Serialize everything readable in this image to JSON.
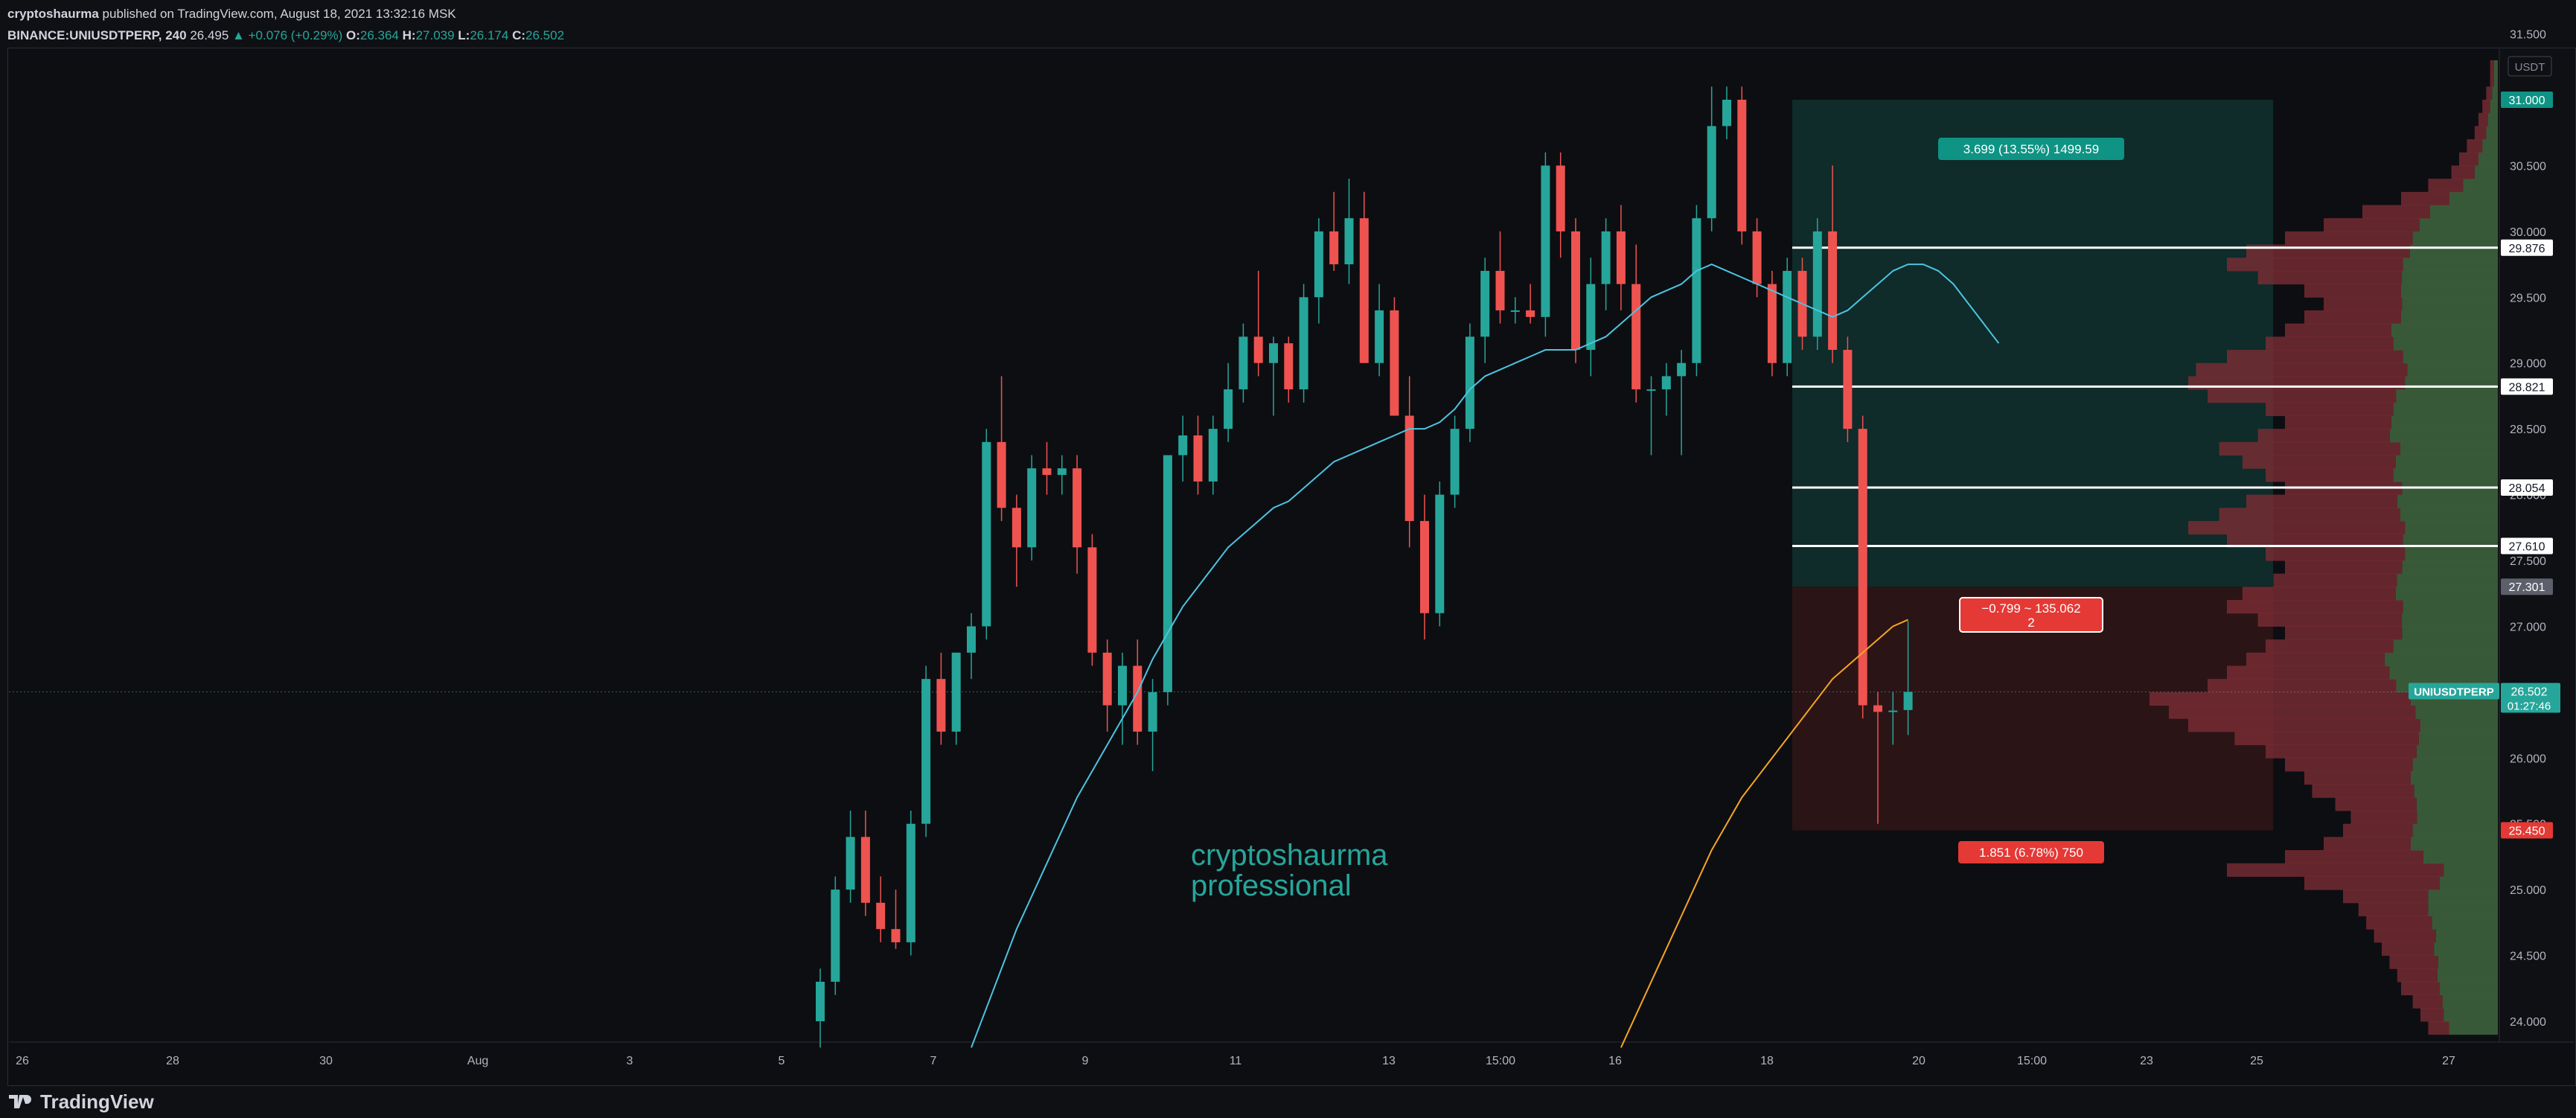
{
  "header": {
    "author": "cryptoshaurma",
    "published": " published on TradingView.com, August 18, 2021 13:32:16 MSK",
    "symbol_line": "BINANCE:UNIUSDTPERP, 240",
    "last": "26.495",
    "change": "▲ +0.076 (+0.29%)",
    "o_label": "O:",
    "o": "26.364",
    "h_label": "H:",
    "h": "27.039",
    "l_label": "L:",
    "l": "26.174",
    "c_label": "C:",
    "c": "26.502"
  },
  "footer": {
    "brand": "TradingView",
    "logo_icon": "tradingview-logo-icon"
  },
  "colors": {
    "up": "#26a69a",
    "down": "#ef5350",
    "ma_fast": "#4dc4e0",
    "ma_slow": "#f5a623",
    "profit_zone": "#0f2f2e",
    "loss_zone": "#2f1517",
    "vp_up": "#3b5e3a",
    "vp_down": "#7a2d35"
  },
  "chart_data": {
    "type": "candlestick",
    "symbol": "UNIUSDTPERP",
    "timeframe": "240",
    "price_unit": "USDT",
    "x_tick_labels": [
      "26",
      "28",
      "30",
      "Aug",
      "3",
      "5",
      "7",
      "9",
      "11",
      "13",
      "15:00",
      "16",
      "18",
      "20",
      "15:00",
      "23",
      "25",
      "27"
    ],
    "y_ticks": [
      "31.500",
      "31.000",
      "30.500",
      "30.000",
      "29.500",
      "29.000",
      "28.500",
      "28.000",
      "27.500",
      "27.000",
      "26.500",
      "26.000",
      "25.500",
      "25.000",
      "24.500",
      "24.000"
    ],
    "y_range": [
      23.8,
      31.8
    ],
    "candles": [
      {
        "o": 24.0,
        "h": 24.4,
        "l": 23.8,
        "c": 24.3
      },
      {
        "o": 24.3,
        "h": 25.1,
        "l": 24.2,
        "c": 25.0
      },
      {
        "o": 25.0,
        "h": 25.6,
        "l": 24.9,
        "c": 25.4
      },
      {
        "o": 25.4,
        "h": 25.6,
        "l": 24.8,
        "c": 24.9
      },
      {
        "o": 24.9,
        "h": 25.1,
        "l": 24.6,
        "c": 24.7
      },
      {
        "o": 24.7,
        "h": 25.0,
        "l": 24.55,
        "c": 24.6
      },
      {
        "o": 24.6,
        "h": 25.6,
        "l": 24.5,
        "c": 25.5
      },
      {
        "o": 25.5,
        "h": 26.7,
        "l": 25.4,
        "c": 26.6
      },
      {
        "o": 26.6,
        "h": 26.8,
        "l": 26.1,
        "c": 26.2
      },
      {
        "o": 26.2,
        "h": 26.8,
        "l": 26.1,
        "c": 26.8
      },
      {
        "o": 26.8,
        "h": 27.1,
        "l": 26.6,
        "c": 27.0
      },
      {
        "o": 27.0,
        "h": 28.5,
        "l": 26.9,
        "c": 28.4
      },
      {
        "o": 28.4,
        "h": 28.9,
        "l": 27.8,
        "c": 27.9
      },
      {
        "o": 27.9,
        "h": 28.0,
        "l": 27.3,
        "c": 27.6
      },
      {
        "o": 27.6,
        "h": 28.3,
        "l": 27.5,
        "c": 28.2
      },
      {
        "o": 28.2,
        "h": 28.4,
        "l": 28.0,
        "c": 28.15
      },
      {
        "o": 28.15,
        "h": 28.3,
        "l": 28.0,
        "c": 28.2
      },
      {
        "o": 28.2,
        "h": 28.3,
        "l": 27.4,
        "c": 27.6
      },
      {
        "o": 27.6,
        "h": 27.7,
        "l": 26.7,
        "c": 26.8
      },
      {
        "o": 26.8,
        "h": 26.9,
        "l": 26.2,
        "c": 26.4
      },
      {
        "o": 26.4,
        "h": 26.8,
        "l": 26.1,
        "c": 26.7
      },
      {
        "o": 26.7,
        "h": 26.9,
        "l": 26.1,
        "c": 26.2
      },
      {
        "o": 26.2,
        "h": 26.6,
        "l": 25.9,
        "c": 26.5
      },
      {
        "o": 26.5,
        "h": 28.3,
        "l": 26.4,
        "c": 28.3
      },
      {
        "o": 28.3,
        "h": 28.6,
        "l": 28.1,
        "c": 28.45
      },
      {
        "o": 28.45,
        "h": 28.6,
        "l": 28.0,
        "c": 28.1
      },
      {
        "o": 28.1,
        "h": 28.6,
        "l": 28.0,
        "c": 28.5
      },
      {
        "o": 28.5,
        "h": 29.0,
        "l": 28.4,
        "c": 28.8
      },
      {
        "o": 28.8,
        "h": 29.3,
        "l": 28.7,
        "c": 29.2
      },
      {
        "o": 29.2,
        "h": 29.7,
        "l": 28.9,
        "c": 29.0
      },
      {
        "o": 29.0,
        "h": 29.2,
        "l": 28.6,
        "c": 29.15
      },
      {
        "o": 29.15,
        "h": 29.2,
        "l": 28.7,
        "c": 28.8
      },
      {
        "o": 28.8,
        "h": 29.6,
        "l": 28.7,
        "c": 29.5
      },
      {
        "o": 29.5,
        "h": 30.1,
        "l": 29.3,
        "c": 30.0
      },
      {
        "o": 30.0,
        "h": 30.3,
        "l": 29.7,
        "c": 29.75
      },
      {
        "o": 29.75,
        "h": 30.4,
        "l": 29.6,
        "c": 30.1
      },
      {
        "o": 30.1,
        "h": 30.3,
        "l": 29.0,
        "c": 29.0
      },
      {
        "o": 29.0,
        "h": 29.6,
        "l": 28.9,
        "c": 29.4
      },
      {
        "o": 29.4,
        "h": 29.5,
        "l": 28.6,
        "c": 28.6
      },
      {
        "o": 28.6,
        "h": 28.9,
        "l": 27.6,
        "c": 27.8
      },
      {
        "o": 27.8,
        "h": 28.0,
        "l": 26.9,
        "c": 27.1
      },
      {
        "o": 27.1,
        "h": 28.1,
        "l": 27.0,
        "c": 28.0
      },
      {
        "o": 28.0,
        "h": 28.6,
        "l": 27.9,
        "c": 28.5
      },
      {
        "o": 28.5,
        "h": 29.3,
        "l": 28.4,
        "c": 29.2
      },
      {
        "o": 29.2,
        "h": 29.8,
        "l": 29.0,
        "c": 29.7
      },
      {
        "o": 29.7,
        "h": 30.0,
        "l": 29.3,
        "c": 29.4
      },
      {
        "o": 29.4,
        "h": 29.5,
        "l": 29.3,
        "c": 29.4
      },
      {
        "o": 29.4,
        "h": 29.6,
        "l": 29.3,
        "c": 29.35
      },
      {
        "o": 29.35,
        "h": 30.6,
        "l": 29.2,
        "c": 30.5
      },
      {
        "o": 30.5,
        "h": 30.6,
        "l": 29.8,
        "c": 30.0
      },
      {
        "o": 30.0,
        "h": 30.1,
        "l": 29.0,
        "c": 29.1
      },
      {
        "o": 29.1,
        "h": 29.8,
        "l": 28.9,
        "c": 29.6
      },
      {
        "o": 29.6,
        "h": 30.1,
        "l": 29.4,
        "c": 30.0
      },
      {
        "o": 30.0,
        "h": 30.2,
        "l": 29.4,
        "c": 29.6
      },
      {
        "o": 29.6,
        "h": 29.9,
        "l": 28.7,
        "c": 28.8
      },
      {
        "o": 28.8,
        "h": 28.9,
        "l": 28.3,
        "c": 28.8
      },
      {
        "o": 28.8,
        "h": 29.0,
        "l": 28.6,
        "c": 28.9
      },
      {
        "o": 28.9,
        "h": 29.1,
        "l": 28.3,
        "c": 29.0
      },
      {
        "o": 29.0,
        "h": 30.2,
        "l": 28.9,
        "c": 30.1
      },
      {
        "o": 30.1,
        "h": 31.1,
        "l": 30.0,
        "c": 30.8
      },
      {
        "o": 30.8,
        "h": 31.1,
        "l": 30.7,
        "c": 31.0
      },
      {
        "o": 31.0,
        "h": 31.1,
        "l": 29.9,
        "c": 30.0
      },
      {
        "o": 30.0,
        "h": 30.1,
        "l": 29.5,
        "c": 29.6
      },
      {
        "o": 29.6,
        "h": 29.7,
        "l": 28.9,
        "c": 29.0
      },
      {
        "o": 29.0,
        "h": 29.8,
        "l": 28.9,
        "c": 29.7
      },
      {
        "o": 29.7,
        "h": 29.8,
        "l": 29.1,
        "c": 29.2
      },
      {
        "o": 29.2,
        "h": 30.1,
        "l": 29.1,
        "c": 30.0
      },
      {
        "o": 30.0,
        "h": 30.5,
        "l": 29.0,
        "c": 29.1
      },
      {
        "o": 29.1,
        "h": 29.2,
        "l": 28.4,
        "c": 28.5
      },
      {
        "o": 28.5,
        "h": 28.6,
        "l": 26.3,
        "c": 26.4
      },
      {
        "o": 26.4,
        "h": 26.5,
        "l": 25.5,
        "c": 26.35
      },
      {
        "o": 26.35,
        "h": 26.5,
        "l": 26.1,
        "c": 26.36
      },
      {
        "o": 26.364,
        "h": 27.039,
        "l": 26.174,
        "c": 26.502
      }
    ],
    "ma_fast": [
      23.8,
      24.1,
      24.4,
      24.7,
      24.95,
      25.2,
      25.45,
      25.7,
      25.9,
      26.1,
      26.3,
      26.5,
      26.75,
      26.95,
      27.15,
      27.3,
      27.45,
      27.6,
      27.7,
      27.8,
      27.9,
      27.95,
      28.05,
      28.15,
      28.25,
      28.3,
      28.35,
      28.4,
      28.45,
      28.5,
      28.5,
      28.55,
      28.65,
      28.8,
      28.9,
      28.95,
      29.0,
      29.05,
      29.1,
      29.1,
      29.1,
      29.15,
      29.2,
      29.3,
      29.4,
      29.5,
      29.55,
      29.6,
      29.7,
      29.75,
      29.7,
      29.65,
      29.6,
      29.55,
      29.5,
      29.45,
      29.4,
      29.35,
      29.4,
      29.5,
      29.6,
      29.7,
      29.75,
      29.75,
      29.7,
      29.6,
      29.45,
      29.3,
      29.15
    ],
    "ma_fast_start_index": 10,
    "ma_slow": [
      23.8,
      24.05,
      24.3,
      24.55,
      24.8,
      25.05,
      25.3,
      25.5,
      25.7,
      25.85,
      26.0,
      26.15,
      26.3,
      26.45,
      26.6,
      26.7,
      26.8,
      26.9,
      27.0,
      27.05
    ],
    "ma_slow_start_index": 53,
    "position": {
      "entry": 27.301,
      "target": 31.0,
      "stop": 25.45,
      "profit_label": "3.699 (13.55%) 1499.59",
      "center_label_line1": "−0.799 ~ 135.062",
      "center_label_line2": "2",
      "loss_label": "1.851 (6.78%) 750"
    },
    "horizontal_levels": [
      29.876,
      28.821,
      28.054,
      27.61
    ],
    "axis_price_labels": [
      {
        "value": 31.0,
        "text": "31.000",
        "style": "up"
      },
      {
        "value": 29.876,
        "text": "29.876",
        "style": "white"
      },
      {
        "value": 28.821,
        "text": "28.821",
        "style": "white"
      },
      {
        "value": 28.054,
        "text": "28.054",
        "style": "white"
      },
      {
        "value": 27.61,
        "text": "27.610",
        "style": "white"
      },
      {
        "value": 27.301,
        "text": "27.301",
        "style": "gray"
      },
      {
        "value": 25.45,
        "text": "25.450",
        "style": "down"
      }
    ],
    "last_price": {
      "value": 26.502,
      "text": "26.502",
      "countdown": "01:27:46",
      "symbol_tag": "UNIUSDTPERP"
    },
    "unit_badge": "USDT",
    "watermark": [
      "cryptoshaurma",
      "professional"
    ],
    "volume_profile": {
      "price_start": 23.9,
      "price_step": 0.1,
      "total": [
        0.18,
        0.2,
        0.22,
        0.25,
        0.26,
        0.28,
        0.3,
        0.32,
        0.34,
        0.36,
        0.4,
        0.5,
        0.7,
        0.55,
        0.45,
        0.4,
        0.38,
        0.42,
        0.48,
        0.5,
        0.55,
        0.6,
        0.68,
        0.8,
        0.85,
        0.9,
        0.75,
        0.7,
        0.65,
        0.6,
        0.55,
        0.62,
        0.7,
        0.66,
        0.58,
        0.55,
        0.6,
        0.7,
        0.8,
        0.72,
        0.65,
        0.55,
        0.6,
        0.66,
        0.72,
        0.62,
        0.55,
        0.6,
        0.75,
        0.8,
        0.78,
        0.7,
        0.6,
        0.55,
        0.5,
        0.45,
        0.5,
        0.62,
        0.7,
        0.65,
        0.55,
        0.45,
        0.35,
        0.25,
        0.18,
        0.12,
        0.1,
        0.08,
        0.06,
        0.05,
        0.04,
        0.03,
        0.02,
        0.02
      ],
      "up_share": [
        0.7,
        0.7,
        0.65,
        0.6,
        0.6,
        0.55,
        0.55,
        0.5,
        0.5,
        0.5,
        0.45,
        0.3,
        0.2,
        0.35,
        0.5,
        0.55,
        0.55,
        0.5,
        0.45,
        0.45,
        0.4,
        0.35,
        0.3,
        0.25,
        0.25,
        0.25,
        0.35,
        0.4,
        0.45,
        0.45,
        0.45,
        0.4,
        0.35,
        0.4,
        0.45,
        0.45,
        0.4,
        0.35,
        0.3,
        0.35,
        0.4,
        0.45,
        0.45,
        0.4,
        0.35,
        0.45,
        0.5,
        0.45,
        0.35,
        0.3,
        0.3,
        0.35,
        0.45,
        0.5,
        0.5,
        0.55,
        0.5,
        0.4,
        0.35,
        0.35,
        0.4,
        0.45,
        0.5,
        0.5,
        0.5,
        0.5,
        0.5,
        0.5,
        0.5,
        0.5,
        0.5,
        0.5,
        0.5,
        0.5
      ]
    }
  }
}
